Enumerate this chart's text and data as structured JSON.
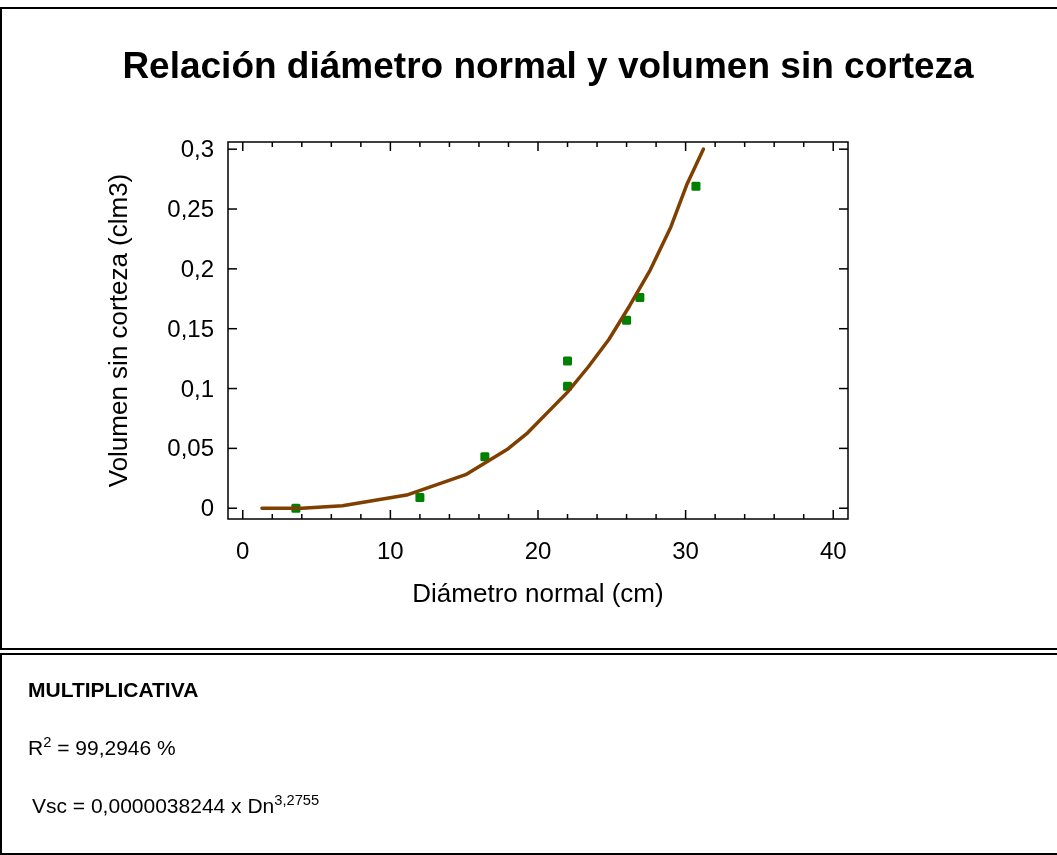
{
  "chart_data": {
    "type": "scatter",
    "title": "Relación diámetro normal y volumen sin corteza",
    "xlabel": "Diámetro normal (cm)",
    "ylabel": "Volumen sin corteza (clm3)",
    "xlim": [
      -1,
      41
    ],
    "ylim": [
      -0.009,
      0.306
    ],
    "xticks": [
      0,
      {
        "value": 2,
        "label": null
      },
      {
        "value": 4,
        "label": null
      },
      {
        "value": 6,
        "label": null
      },
      {
        "value": 8,
        "label": null
      },
      10,
      {
        "value": 12,
        "label": null
      },
      {
        "value": 14,
        "label": null
      },
      {
        "value": 16,
        "label": null
      },
      {
        "value": 18,
        "label": null
      },
      20,
      {
        "value": 22,
        "label": null
      },
      {
        "value": 24,
        "label": null
      },
      {
        "value": 26,
        "label": null
      },
      {
        "value": 28,
        "label": null
      },
      30,
      {
        "value": 32,
        "label": null
      },
      {
        "value": 34,
        "label": null
      },
      {
        "value": 36,
        "label": null
      },
      {
        "value": 38,
        "label": null
      },
      40
    ],
    "yticks": [
      {
        "value": 0,
        "label": "0"
      },
      {
        "value": 0.05,
        "label": "0,05"
      },
      {
        "value": 0.1,
        "label": "0,1"
      },
      {
        "value": 0.15,
        "label": "0,15"
      },
      {
        "value": 0.2,
        "label": "0,2"
      },
      {
        "value": 0.25,
        "label": "0,25"
      },
      {
        "value": 0.3,
        "label": "0,3"
      }
    ],
    "grid": false,
    "series": [
      {
        "marker": "square",
        "color": "#008000",
        "x": [
          3.6,
          12,
          16.4,
          22,
          22,
          26,
          26.9,
          30.7
        ],
        "values": [
          0,
          0.009,
          0.043,
          0.123,
          0.102,
          0.157,
          0.176,
          0.269
        ]
      },
      {
        "type": "line",
        "marker": "none",
        "line_style": "solid",
        "color": "#7f3f00",
        "x": [
          1.3,
          4,
          6.75,
          11.1,
          15.1,
          17.9,
          19.3,
          22,
          23.4,
          24.8,
          26.2,
          27.6,
          29,
          30.1,
          31.2
        ],
        "values": [
          0,
          0,
          0.002,
          0.011,
          0.028,
          0.049,
          0.063,
          0.097,
          0.118,
          0.141,
          0.169,
          0.199,
          0.235,
          0.271,
          0.3
        ]
      }
    ],
    "annotations": [
      "MULTIPLICATIVA",
      "R$^{2}$ = 99,2946 %",
      "Vsc = 0,0000038244 x Dn$^{3,2755}$"
    ]
  }
}
